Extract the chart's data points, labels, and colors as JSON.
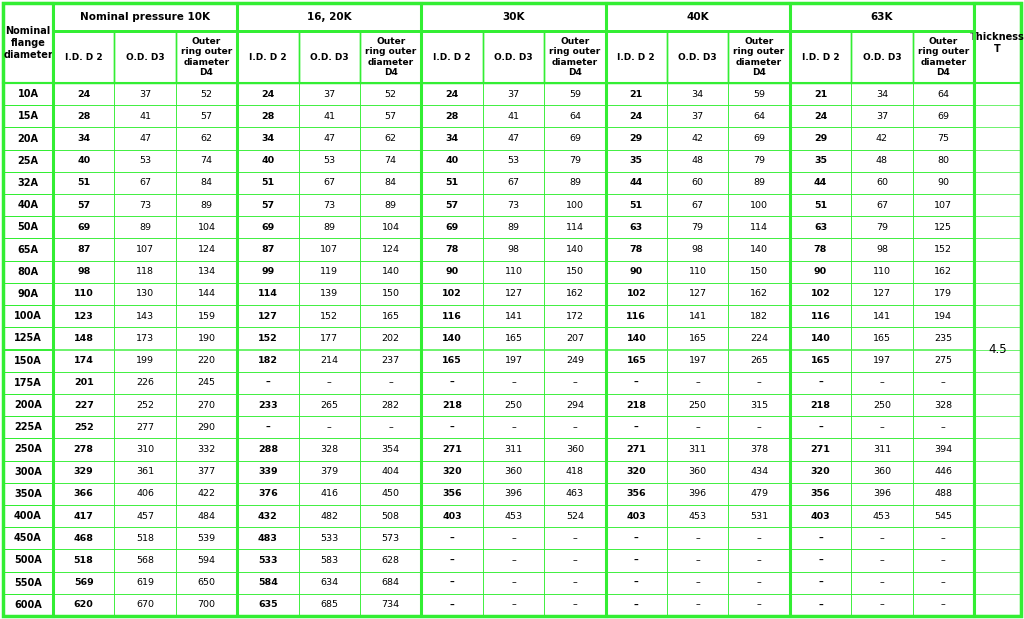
{
  "background_color": "#ffffff",
  "green_color": "#33ee33",
  "text_color": "#000000",
  "thickness_value": "4.5",
  "pressure_groups": [
    "Nominal pressure 10K",
    "16, 20K",
    "30K",
    "40K",
    "63K"
  ],
  "nominal_sizes": [
    "10A",
    "15A",
    "20A",
    "25A",
    "32A",
    "40A",
    "50A",
    "65A",
    "80A",
    "90A",
    "100A",
    "125A",
    "150A",
    "175A",
    "200A",
    "225A",
    "250A",
    "300A",
    "350A",
    "400A",
    "450A",
    "500A",
    "550A",
    "600A"
  ],
  "data_10k": [
    [
      24,
      37,
      52
    ],
    [
      28,
      41,
      57
    ],
    [
      34,
      47,
      62
    ],
    [
      40,
      53,
      74
    ],
    [
      51,
      67,
      84
    ],
    [
      57,
      73,
      89
    ],
    [
      69,
      89,
      104
    ],
    [
      87,
      107,
      124
    ],
    [
      98,
      118,
      134
    ],
    [
      110,
      130,
      144
    ],
    [
      123,
      143,
      159
    ],
    [
      148,
      173,
      190
    ],
    [
      174,
      199,
      220
    ],
    [
      201,
      226,
      245
    ],
    [
      227,
      252,
      270
    ],
    [
      252,
      277,
      290
    ],
    [
      278,
      310,
      332
    ],
    [
      329,
      361,
      377
    ],
    [
      366,
      406,
      422
    ],
    [
      417,
      457,
      484
    ],
    [
      468,
      518,
      539
    ],
    [
      518,
      568,
      594
    ],
    [
      569,
      619,
      650
    ],
    [
      620,
      670,
      700
    ]
  ],
  "data_1620k": [
    [
      24,
      37,
      52
    ],
    [
      28,
      41,
      57
    ],
    [
      34,
      47,
      62
    ],
    [
      40,
      53,
      74
    ],
    [
      51,
      67,
      84
    ],
    [
      57,
      73,
      89
    ],
    [
      69,
      89,
      104
    ],
    [
      87,
      107,
      124
    ],
    [
      99,
      119,
      140
    ],
    [
      114,
      139,
      150
    ],
    [
      127,
      152,
      165
    ],
    [
      152,
      177,
      202
    ],
    [
      182,
      214,
      237
    ],
    [
      "–",
      "–",
      "–"
    ],
    [
      233,
      265,
      282
    ],
    [
      "–",
      "–",
      "–"
    ],
    [
      288,
      328,
      354
    ],
    [
      339,
      379,
      404
    ],
    [
      376,
      416,
      450
    ],
    [
      432,
      482,
      508
    ],
    [
      483,
      533,
      573
    ],
    [
      533,
      583,
      628
    ],
    [
      584,
      634,
      684
    ],
    [
      635,
      685,
      734
    ]
  ],
  "data_30k": [
    [
      24,
      37,
      59
    ],
    [
      28,
      41,
      64
    ],
    [
      34,
      47,
      69
    ],
    [
      40,
      53,
      79
    ],
    [
      51,
      67,
      89
    ],
    [
      57,
      73,
      100
    ],
    [
      69,
      89,
      114
    ],
    [
      78,
      98,
      140
    ],
    [
      90,
      110,
      150
    ],
    [
      102,
      127,
      162
    ],
    [
      116,
      141,
      172
    ],
    [
      140,
      165,
      207
    ],
    [
      165,
      197,
      249
    ],
    [
      "–",
      "–",
      "–"
    ],
    [
      218,
      250,
      294
    ],
    [
      "–",
      "–",
      "–"
    ],
    [
      271,
      311,
      360
    ],
    [
      320,
      360,
      418
    ],
    [
      356,
      396,
      463
    ],
    [
      403,
      453,
      524
    ],
    [
      "–",
      "–",
      "–"
    ],
    [
      "–",
      "–",
      "–"
    ],
    [
      "–",
      "–",
      "–"
    ],
    [
      "–",
      "–",
      "–"
    ]
  ],
  "data_40k": [
    [
      21,
      34,
      59
    ],
    [
      24,
      37,
      64
    ],
    [
      29,
      42,
      69
    ],
    [
      35,
      48,
      79
    ],
    [
      44,
      60,
      89
    ],
    [
      51,
      67,
      100
    ],
    [
      63,
      79,
      114
    ],
    [
      78,
      98,
      140
    ],
    [
      90,
      110,
      150
    ],
    [
      102,
      127,
      162
    ],
    [
      116,
      141,
      182
    ],
    [
      140,
      165,
      224
    ],
    [
      165,
      197,
      265
    ],
    [
      "–",
      "–",
      "–"
    ],
    [
      218,
      250,
      315
    ],
    [
      "–",
      "–",
      "–"
    ],
    [
      271,
      311,
      378
    ],
    [
      320,
      360,
      434
    ],
    [
      356,
      396,
      479
    ],
    [
      403,
      453,
      531
    ],
    [
      "–",
      "–",
      "–"
    ],
    [
      "–",
      "–",
      "–"
    ],
    [
      "–",
      "–",
      "–"
    ],
    [
      "–",
      "–",
      "–"
    ]
  ],
  "data_63k": [
    [
      21,
      34,
      64
    ],
    [
      24,
      37,
      69
    ],
    [
      29,
      42,
      75
    ],
    [
      35,
      48,
      80
    ],
    [
      44,
      60,
      90
    ],
    [
      51,
      67,
      107
    ],
    [
      63,
      79,
      125
    ],
    [
      78,
      98,
      152
    ],
    [
      90,
      110,
      162
    ],
    [
      102,
      127,
      179
    ],
    [
      116,
      141,
      194
    ],
    [
      140,
      165,
      235
    ],
    [
      165,
      197,
      275
    ],
    [
      "–",
      "–",
      "–"
    ],
    [
      218,
      250,
      328
    ],
    [
      "–",
      "–",
      "–"
    ],
    [
      271,
      311,
      394
    ],
    [
      320,
      360,
      446
    ],
    [
      356,
      396,
      488
    ],
    [
      403,
      453,
      545
    ],
    [
      "–",
      "–",
      "–"
    ],
    [
      "–",
      "–",
      "–"
    ],
    [
      "–",
      "–",
      "–"
    ],
    [
      "–",
      "–",
      "–"
    ]
  ]
}
